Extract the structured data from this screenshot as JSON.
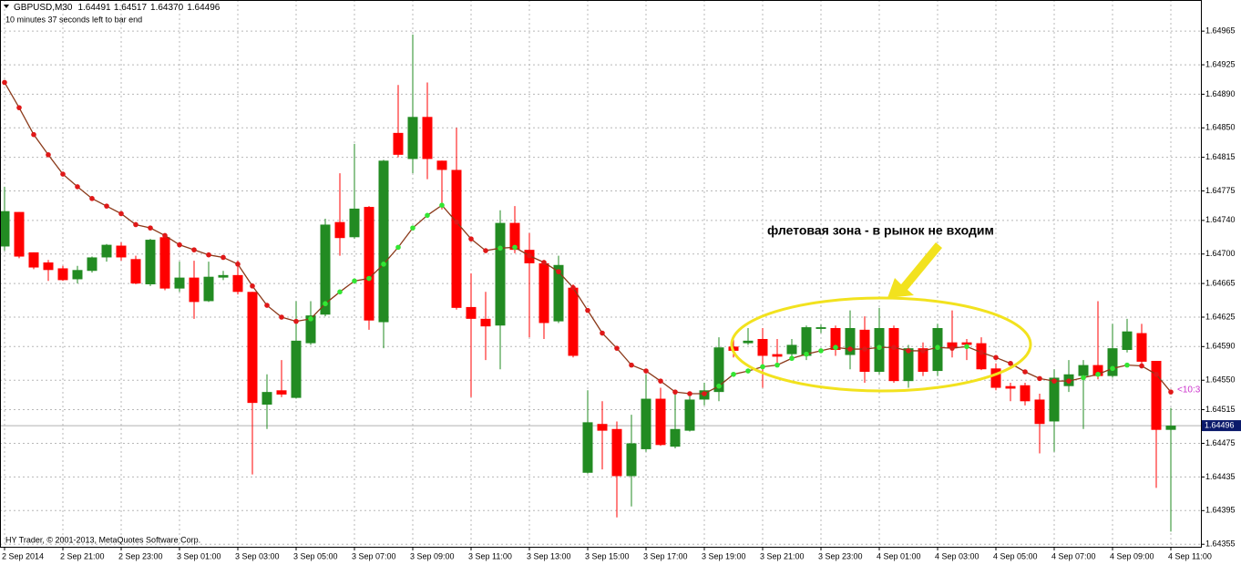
{
  "chart_data": {
    "type": "candlestick",
    "info": {
      "symbol": "GBPUSD,M30",
      "last_bar": [
        "1.64491",
        "1.64517",
        "1.64370",
        "1.64496"
      ],
      "timer": "10 minutes 37 seconds left to bar end",
      "countdown": "<10:3",
      "copyright": "HY Trader, © 2001-2013, MetaQuotes Software Corp."
    },
    "annotation": "флетовая зона - в рынок не входим",
    "categories": [
      "2 Sep 2014",
      null,
      null,
      null,
      "2 Sep 21:00",
      null,
      null,
      null,
      "2 Sep 23:00",
      null,
      null,
      null,
      "3 Sep 01:00",
      null,
      null,
      null,
      "3 Sep 03:00",
      null,
      null,
      null,
      "3 Sep 05:00",
      null,
      null,
      null,
      "3 Sep 07:00",
      null,
      null,
      null,
      "3 Sep 09:00",
      null,
      null,
      null,
      "3 Sep 11:00",
      null,
      null,
      null,
      "3 Sep 13:00",
      null,
      null,
      null,
      "3 Sep 15:00",
      null,
      null,
      null,
      "3 Sep 17:00",
      null,
      null,
      null,
      "3 Sep 19:00",
      null,
      null,
      null,
      "3 Sep 21:00",
      null,
      null,
      null,
      "3 Sep 23:00",
      null,
      null,
      null,
      "4 Sep 01:00",
      null,
      null,
      null,
      "4 Sep 03:00",
      null,
      null,
      null,
      "4 Sep 05:00",
      null,
      null,
      null,
      "4 Sep 07:00",
      null,
      null,
      null,
      "4 Sep 09:00",
      null,
      null,
      null,
      "4 Sep 11:00"
    ],
    "ohlc": {
      "up_color": "#228b22",
      "down_color": "#ff0000",
      "open": [
        1.64709,
        1.6475,
        1.64702,
        1.6469,
        1.64683,
        1.6467,
        1.6468,
        1.64696,
        1.6471,
        1.64694,
        1.64664,
        1.6472,
        1.64659,
        1.64672,
        1.64644,
        1.64672,
        1.64675,
        1.64655,
        1.64521,
        1.64538,
        1.64529,
        1.64594,
        1.64628,
        1.64738,
        1.6472,
        1.64756,
        1.64619,
        1.64844,
        1.64813,
        1.64863,
        1.64811,
        1.648,
        1.64637,
        1.64623,
        1.64615,
        1.64737,
        1.64705,
        1.64689,
        1.6462,
        1.6466,
        1.6444,
        1.64498,
        1.64492,
        1.64436,
        1.64468,
        1.64528,
        1.64471,
        1.6449,
        1.64527,
        1.64536,
        1.6459,
        1.64594,
        1.64599,
        1.64581,
        1.64581,
        1.64579,
        1.64611,
        1.64612,
        1.6458,
        1.6461,
        1.6456,
        1.64612,
        1.64549,
        1.64588,
        1.64561,
        1.64595,
        1.64595,
        1.64594,
        1.64564,
        1.64543,
        1.64544,
        1.64527,
        1.64501,
        1.64543,
        1.64555,
        1.64568,
        1.64555,
        1.64586,
        1.64606,
        1.64573,
        1.64491
      ],
      "high": [
        1.6478,
        1.6475,
        1.64702,
        1.64693,
        1.64686,
        1.64686,
        1.64697,
        1.64712,
        1.64714,
        1.64698,
        1.64718,
        1.64722,
        1.64691,
        1.64692,
        1.64691,
        1.6468,
        1.64692,
        1.64655,
        1.64557,
        1.64574,
        1.64644,
        1.64644,
        1.64742,
        1.64796,
        1.64831,
        1.64757,
        1.64812,
        1.64901,
        1.64961,
        1.64904,
        1.64811,
        1.6485,
        1.64677,
        1.64655,
        1.64752,
        1.64757,
        1.64725,
        1.64693,
        1.64698,
        1.64664,
        1.64538,
        1.64525,
        1.64501,
        1.64509,
        1.64557,
        1.64541,
        1.64534,
        1.64531,
        1.64547,
        1.64601,
        1.64599,
        1.64612,
        1.64612,
        1.64599,
        1.64599,
        1.64615,
        1.64616,
        1.64615,
        1.64633,
        1.64626,
        1.64636,
        1.64615,
        1.64592,
        1.64595,
        1.64617,
        1.64633,
        1.64599,
        1.64601,
        1.6457,
        1.64547,
        1.64547,
        1.64534,
        1.64563,
        1.64574,
        1.64574,
        1.64644,
        1.64617,
        1.64623,
        1.64617,
        1.64573,
        1.64517
      ],
      "low": [
        1.64704,
        1.64695,
        1.64682,
        1.64668,
        1.64668,
        1.64665,
        1.64678,
        1.64691,
        1.64692,
        1.64664,
        1.64662,
        1.64657,
        1.64655,
        1.64623,
        1.64643,
        1.64669,
        1.64652,
        1.64438,
        1.64492,
        1.6453,
        1.64528,
        1.64592,
        1.64626,
        1.64698,
        1.64718,
        1.6461,
        1.64588,
        1.64815,
        1.64796,
        1.64789,
        1.64753,
        1.64634,
        1.6453,
        1.64574,
        1.64563,
        1.64701,
        1.64601,
        1.64599,
        1.64618,
        1.64577,
        1.64439,
        1.64444,
        1.64387,
        1.644,
        1.64465,
        1.64472,
        1.64469,
        1.64489,
        1.6452,
        1.64525,
        1.64577,
        1.64592,
        1.64541,
        1.64568,
        1.64577,
        1.64574,
        1.64606,
        1.64579,
        1.64563,
        1.64547,
        1.64557,
        1.64547,
        1.64541,
        1.64555,
        1.64555,
        1.64577,
        1.64574,
        1.64562,
        1.64538,
        1.64525,
        1.6452,
        1.64463,
        1.64465,
        1.64536,
        1.64492,
        1.64551,
        1.64553,
        1.64583,
        1.64568,
        1.64422,
        1.6437
      ],
      "close": [
        1.64751,
        1.64697,
        1.64684,
        1.64681,
        1.64669,
        1.64681,
        1.64696,
        1.64711,
        1.64696,
        1.64665,
        1.64717,
        1.64659,
        1.64672,
        1.64643,
        1.64673,
        1.64675,
        1.64655,
        1.64523,
        1.64536,
        1.64533,
        1.64597,
        1.64627,
        1.64735,
        1.64719,
        1.64754,
        1.64621,
        1.64811,
        1.64818,
        1.64863,
        1.64813,
        1.648,
        1.64636,
        1.64623,
        1.64614,
        1.64737,
        1.64705,
        1.64689,
        1.64618,
        1.64687,
        1.64579,
        1.645,
        1.6449,
        1.64436,
        1.64475,
        1.64528,
        1.64473,
        1.64492,
        1.64527,
        1.64538,
        1.64589,
        1.64585,
        1.64597,
        1.64579,
        1.64578,
        1.64592,
        1.64613,
        1.64613,
        1.64586,
        1.64612,
        1.6456,
        1.64612,
        1.64549,
        1.64588,
        1.6456,
        1.64612,
        1.64588,
        1.64592,
        1.64563,
        1.64541,
        1.6454,
        1.64525,
        1.64498,
        1.64553,
        1.64557,
        1.64568,
        1.64555,
        1.64588,
        1.64608,
        1.64572,
        1.64491,
        1.64496
      ]
    },
    "moving_average": {
      "color": "#8b3a1a",
      "up_color": "#33e633",
      "down_color": "#e01818",
      "values": [
        1.64904,
        1.64874,
        1.64842,
        1.64818,
        1.64795,
        1.6478,
        1.64766,
        1.64757,
        1.64748,
        1.64735,
        1.64731,
        1.64722,
        1.64711,
        1.64705,
        1.64699,
        1.64696,
        1.64688,
        1.64662,
        1.64639,
        1.64625,
        1.6462,
        1.64623,
        1.64641,
        1.64655,
        1.64668,
        1.64671,
        1.64688,
        1.64708,
        1.64731,
        1.64746,
        1.64758,
        1.64738,
        1.64718,
        1.64704,
        1.64707,
        1.64708,
        1.64698,
        1.6469,
        1.64679,
        1.6466,
        1.64633,
        1.64606,
        1.64588,
        1.64568,
        1.64561,
        1.64549,
        1.64536,
        1.64534,
        1.64534,
        1.64543,
        1.64557,
        1.64561,
        1.64566,
        1.64568,
        1.64576,
        1.64581,
        1.64585,
        1.64589,
        1.64587,
        1.64587,
        1.64589,
        1.64589,
        1.64585,
        1.64585,
        1.64589,
        1.64588,
        1.6459,
        1.64583,
        1.64577,
        1.6457,
        1.6456,
        1.64552,
        1.64549,
        1.64549,
        1.64553,
        1.64557,
        1.64564,
        1.64568,
        1.64567,
        1.64557,
        1.64536
      ]
    },
    "ylim": [
      1.64352,
      1.65002
    ],
    "yticks": [
      1.64965,
      1.64925,
      {
        "value": 1.6489,
        "label": "1.64890"
      },
      {
        "value": 1.6485,
        "label": "1.64850"
      },
      1.64815,
      1.64775,
      {
        "value": 1.6474,
        "label": "1.64740"
      },
      {
        "value": 1.647,
        "label": "1.64700"
      },
      1.64665,
      1.64625,
      {
        "value": 1.6459,
        "label": "1.64590"
      },
      {
        "value": 1.6455,
        "label": "1.64550"
      },
      1.64515,
      1.64475,
      1.64435,
      1.64395,
      1.64355
    ],
    "grid": true
  }
}
